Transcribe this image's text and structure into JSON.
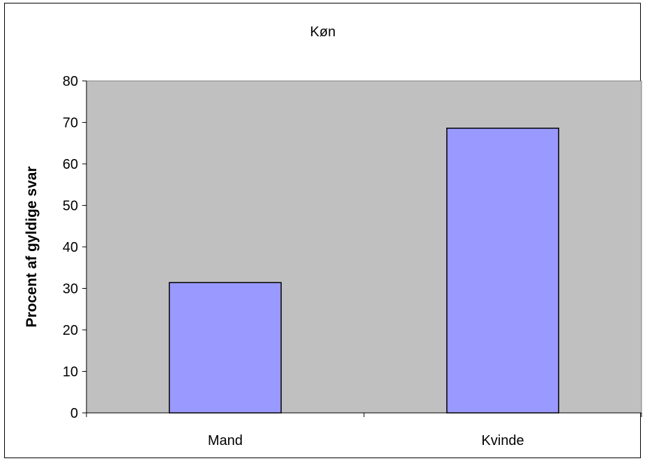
{
  "chart_data": {
    "type": "bar",
    "title": "Køn",
    "xlabel": "",
    "ylabel": "Procent af gyldige svar",
    "categories": [
      "Mand",
      "Kvinde"
    ],
    "values": [
      31.4,
      68.6
    ],
    "ylim": [
      0,
      80
    ],
    "yticks": [
      0,
      10,
      20,
      30,
      40,
      50,
      60,
      70,
      80
    ],
    "grid": false,
    "legend": "none",
    "colors": {
      "plot_background": "#c0c0c0",
      "bar_fill": "#9999ff",
      "bar_stroke": "#000000"
    }
  }
}
